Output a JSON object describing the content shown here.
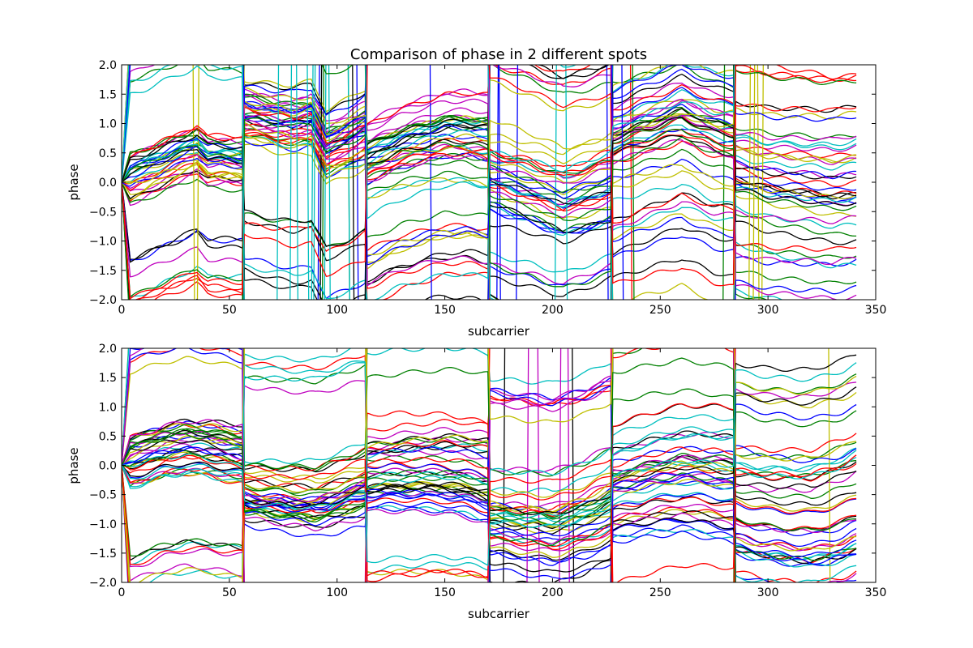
{
  "chart_data": [
    {
      "type": "line",
      "title": "Comparison of phase in 2 different spots",
      "xlabel": "subcarrier",
      "ylabel": "phase",
      "xlim": [
        0,
        350
      ],
      "ylim": [
        -2.0,
        2.0
      ],
      "xticks": [
        0,
        50,
        100,
        150,
        200,
        250,
        300,
        350
      ],
      "xtick_labels": [
        "0",
        "50",
        "100",
        "150",
        "200",
        "250",
        "300",
        "350"
      ],
      "yticks": [
        -2.0,
        -1.5,
        -1.0,
        -0.5,
        0.0,
        0.5,
        1.0,
        1.5,
        2.0
      ],
      "ytick_labels": [
        "−2.0",
        "−1.5",
        "−1.0",
        "−0.5",
        "0.0",
        "0.5",
        "1.0",
        "1.5",
        "2.0"
      ],
      "grid": false,
      "segment_breaks": [
        57,
        114,
        171,
        228,
        285
      ],
      "series_count": 60,
      "series_colors": [
        "#0000ff",
        "#008000",
        "#ff0000",
        "#00bfbf",
        "#bf00bf",
        "#bfbf00",
        "#000000"
      ],
      "baseline": {
        "x": [
          0,
          10,
          20,
          30,
          35,
          40,
          50,
          56,
          57,
          70,
          80,
          88,
          95,
          105,
          113,
          114,
          130,
          150,
          160,
          170,
          171,
          190,
          205,
          215,
          227,
          228,
          245,
          260,
          275,
          284,
          285,
          300,
          320,
          330,
          341
        ],
        "y": [
          0.0,
          0.12,
          0.28,
          0.42,
          0.5,
          0.32,
          0.3,
          0.28,
          1.15,
          1.05,
          1.0,
          1.05,
          0.55,
          0.7,
          0.85,
          0.35,
          0.6,
          0.78,
          0.78,
          0.72,
          0.05,
          -0.15,
          -0.35,
          -0.25,
          -0.1,
          0.7,
          0.9,
          1.08,
          0.85,
          0.8,
          0.25,
          0.12,
          0.05,
          0.0,
          0.05
        ]
      }
    },
    {
      "type": "line",
      "title": "",
      "xlabel": "subcarrier",
      "ylabel": "phase",
      "xlim": [
        0,
        350
      ],
      "ylim": [
        -2.0,
        2.0
      ],
      "xticks": [
        0,
        50,
        100,
        150,
        200,
        250,
        300,
        350
      ],
      "xtick_labels": [
        "0",
        "50",
        "100",
        "150",
        "200",
        "250",
        "300",
        "350"
      ],
      "yticks": [
        -2.0,
        -1.5,
        -1.0,
        -0.5,
        0.0,
        0.5,
        1.0,
        1.5,
        2.0
      ],
      "ytick_labels": [
        "−2.0",
        "−1.5",
        "−1.0",
        "−0.5",
        "0.0",
        "0.5",
        "1.0",
        "1.5",
        "2.0"
      ],
      "grid": false,
      "segment_breaks": [
        57,
        114,
        171,
        228,
        285
      ],
      "series_count": 60,
      "series_colors": [
        "#0000ff",
        "#008000",
        "#ff0000",
        "#00bfbf",
        "#bf00bf",
        "#bfbf00",
        "#000000"
      ],
      "baseline": {
        "x": [
          0,
          10,
          20,
          30,
          40,
          50,
          56,
          57,
          70,
          90,
          100,
          113,
          114,
          130,
          150,
          160,
          170,
          171,
          185,
          200,
          215,
          227,
          228,
          245,
          260,
          275,
          284,
          285,
          300,
          320,
          335,
          341
        ],
        "y": [
          0.0,
          0.1,
          0.22,
          0.28,
          0.25,
          0.18,
          0.15,
          -0.45,
          -0.5,
          -0.55,
          -0.45,
          -0.3,
          -0.15,
          -0.1,
          -0.08,
          -0.12,
          -0.2,
          -0.85,
          -0.9,
          -0.95,
          -0.8,
          -0.6,
          -0.3,
          -0.15,
          -0.05,
          -0.1,
          -0.15,
          -0.8,
          -0.9,
          -0.95,
          -0.8,
          -0.7
        ]
      }
    }
  ]
}
